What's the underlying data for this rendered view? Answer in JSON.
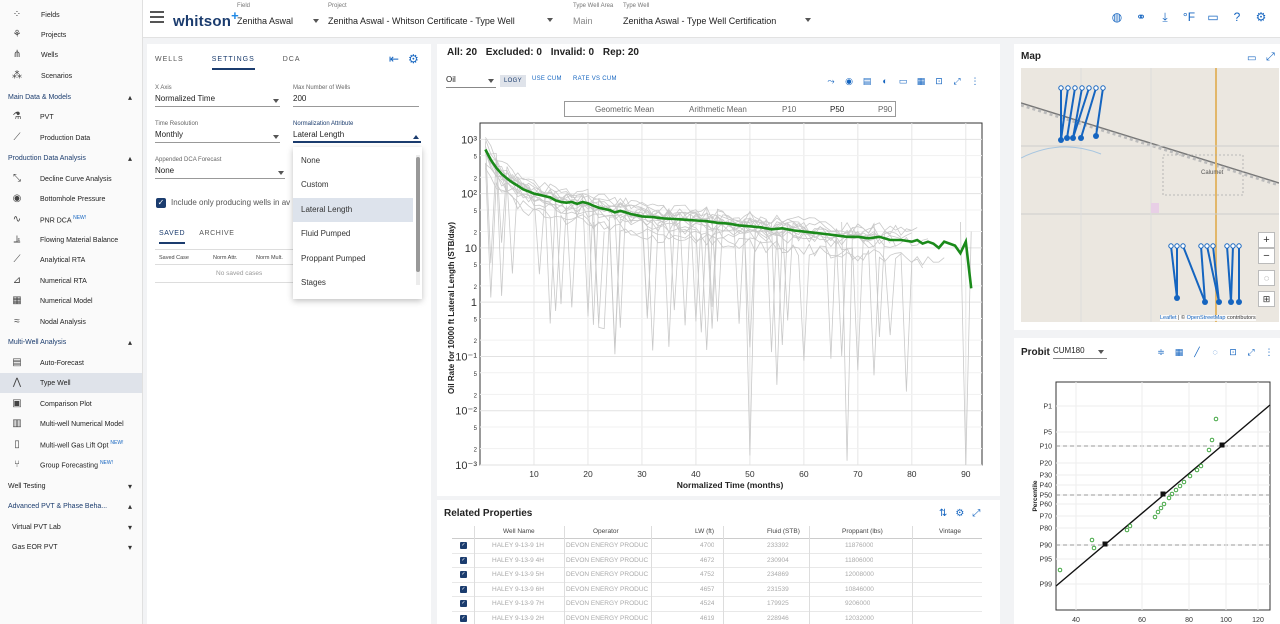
{
  "topbar": {
    "logo": "whitson",
    "logo_plus": "+",
    "field_label": "Field",
    "field_value": "Zenitha Aswal",
    "project_label": "Project",
    "project_value": "Zenitha Aswal - Whitson Certificate - Type Well",
    "twa_label": "Type Well Area",
    "twa_value": "Main",
    "tw_label": "Type Well",
    "tw_value": "Zenitha Aswal - Type Well Certification",
    "unit_label": "°F"
  },
  "sidebar": {
    "fields": "Fields",
    "projects": "Projects",
    "wells": "Wells",
    "scenarios": "Scenarios",
    "sec_main": "Main Data & Models",
    "pvt": "PVT",
    "production_data": "Production Data",
    "sec_pda": "Production Data Analysis",
    "dca": "Decline Curve Analysis",
    "bhp": "Bottomhole Pressure",
    "pnr": "PNR DCA",
    "fmb": "Flowing Material Balance",
    "analytical_rta": "Analytical RTA",
    "numerical_rta": "Numerical RTA",
    "numerical_model": "Numerical Model",
    "nodal": "Nodal Analysis",
    "sec_mwa": "Multi-Well Analysis",
    "auto_forecast": "Auto-Forecast",
    "type_well": "Type Well",
    "comparison": "Comparison Plot",
    "mw_numerical": "Multi-well Numerical Model",
    "mw_gaslift": "Multi-well Gas Lift Opt",
    "group_forecast": "Group Forecasting",
    "new_badge": "NEW!",
    "sec_wt": "Well Testing",
    "sec_adv": "Advanced PVT & Phase Beha...",
    "vpvt": "Virtual PVT Lab",
    "gaseor": "Gas EOR PVT"
  },
  "settings": {
    "tab_wells": "WELLS",
    "tab_settings": "SETTINGS",
    "tab_dca": "DCA",
    "xaxis_label": "X Axis",
    "xaxis_value": "Normalized Time",
    "maxwells_label": "Max Number of Wells",
    "maxwells_value": "200",
    "timeres_label": "Time Resolution",
    "timeres_value": "Monthly",
    "norm_label": "Normalization Attribute",
    "norm_value": "Lateral Length",
    "dca_label": "Appended DCA Forecast",
    "dca_value": "None",
    "include_label": "Include only producing wells in av",
    "sub_saved": "SAVED",
    "sub_archive": "ARCHIVE",
    "col_case": "Saved Case",
    "col_attr": "Norm Attr.",
    "col_mult": "Norm Mult.",
    "empty": "No saved cases"
  },
  "menu": {
    "options": [
      "None",
      "Custom",
      "Lateral Length",
      "Fluid Pumped",
      "Proppant Pumped",
      "Stages"
    ]
  },
  "chart_panel": {
    "all": "All: 20",
    "excluded": "Excluded: 0",
    "invalid": "Invalid: 0",
    "rep": "Rep: 20",
    "phase": "Oil",
    "logy": "LOGY",
    "use_cum": "USE CUM",
    "rate_vs_cum": "RATE VS CUM",
    "legend": [
      "Geometric Mean",
      "Arithmetic Mean",
      "P10",
      "P50",
      "P90"
    ]
  },
  "chart_data": {
    "type": "line",
    "title": "",
    "xlabel": "Normalized Time (months)",
    "ylabel": "Oil Rate for 10000 ft Lateral Length (STB/day)",
    "xlim": [
      0,
      93
    ],
    "ylim": [
      0.001,
      2000
    ],
    "yscale": "log",
    "xticks": [
      10,
      20,
      30,
      40,
      50,
      60,
      70,
      80,
      90
    ],
    "yticks": [
      "10³",
      "5",
      "2",
      "10²",
      "5",
      "2",
      "10",
      "5",
      "2",
      "1",
      "5",
      "2",
      "10⁻¹",
      "5",
      "2",
      "10⁻²",
      "5",
      "2",
      "10⁻³"
    ],
    "series": [
      {
        "name": "P50",
        "color": "#1a8a1a",
        "x": [
          1,
          2,
          3,
          4,
          5,
          6,
          7,
          8,
          9,
          10,
          11,
          12,
          13,
          14,
          15,
          16,
          17,
          18,
          19,
          20,
          21,
          22,
          23,
          24,
          25,
          26,
          27,
          28,
          29,
          30,
          32,
          34,
          36,
          38,
          40,
          42,
          44,
          46,
          48,
          50,
          52,
          54,
          56,
          58,
          60,
          62,
          64,
          66,
          68,
          70,
          72,
          74,
          76,
          78,
          80,
          81,
          82,
          83,
          84,
          85,
          86,
          87,
          88,
          89,
          90,
          91
        ],
        "values": [
          650,
          420,
          300,
          230,
          190,
          160,
          140,
          120,
          110,
          100,
          95,
          90,
          85,
          75,
          70,
          68,
          70,
          65,
          70,
          66,
          60,
          55,
          52,
          50,
          45,
          48,
          45,
          42,
          40,
          38,
          37,
          35,
          34,
          33,
          32,
          31,
          29,
          28,
          26,
          25,
          24,
          22,
          23,
          21,
          20,
          19,
          18,
          17,
          16,
          16,
          15,
          16,
          14,
          14,
          13,
          14,
          12,
          13,
          12,
          10,
          13,
          12,
          11,
          8,
          13,
          1.8
        ]
      }
    ]
  },
  "related": {
    "title": "Related Properties",
    "headers": [
      "Well Name",
      "Operator",
      "LW (ft)",
      "Fluid (STB)",
      "Proppant (lbs)",
      "Vintage"
    ],
    "rows": [
      [
        "HALEY 9-13-9 1H",
        "DEVON ENERGY PRODUC",
        "4700",
        "233392",
        "11876000",
        ""
      ],
      [
        "HALEY 9-13-9 4H",
        "DEVON ENERGY PRODUC",
        "4672",
        "230904",
        "11806000",
        ""
      ],
      [
        "HALEY 9-13-9 5H",
        "DEVON ENERGY PRODUC",
        "4752",
        "234869",
        "12008000",
        ""
      ],
      [
        "HALEY 9-13-9 6H",
        "DEVON ENERGY PRODUC",
        "4657",
        "231539",
        "10846000",
        ""
      ],
      [
        "HALEY 9-13-9 7H",
        "DEVON ENERGY PRODUC",
        "4524",
        "179925",
        "9206000",
        ""
      ],
      [
        "HALEY 9-13-9 2H",
        "DEVON ENERGY PRODUC",
        "4619",
        "228946",
        "12032000",
        ""
      ]
    ]
  },
  "map": {
    "title": "Map",
    "town_label": "Calumet",
    "attribution_leaflet": "Leaflet",
    "attribution_osm": "OpenStreetMap",
    "attribution_rest": "contributors",
    "zoom_in": "+",
    "zoom_out": "−"
  },
  "probit": {
    "title": "Probit",
    "select": "CUM180",
    "ylabel": "Percentile",
    "yticks": [
      "P1",
      "P5",
      "P10",
      "P20",
      "P30",
      "P40",
      "P50",
      "P60",
      "P70",
      "P80",
      "P90",
      "P95",
      "P99"
    ],
    "xticks": [
      "40",
      "60",
      "80",
      "100",
      "120"
    ]
  }
}
